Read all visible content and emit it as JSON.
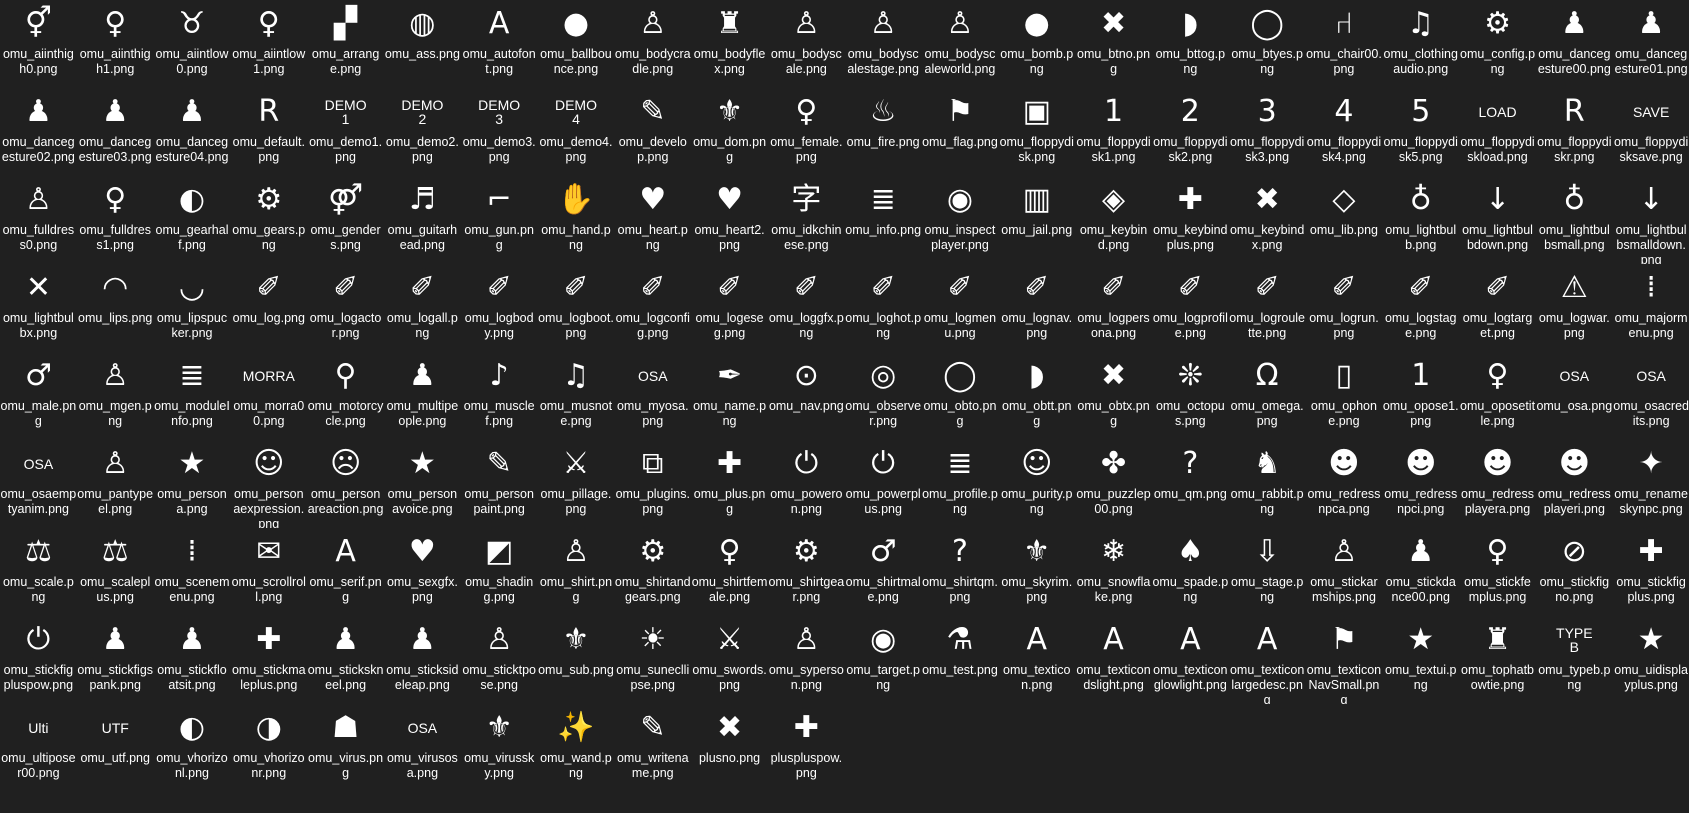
{
  "window": {
    "view": "icons"
  },
  "files": [
    {
      "name": "omu_aiinthigh0.png",
      "icon": "⚥",
      "icon_name": "female-auto-icon"
    },
    {
      "name": "omu_aiinthigh1.png",
      "icon": "♀",
      "icon_name": "female-auto-icon"
    },
    {
      "name": "omu_aiintlow0.png",
      "icon": "♉",
      "icon_name": "lingerie-auto-icon"
    },
    {
      "name": "omu_aiintlow1.png",
      "icon": "♀",
      "icon_name": "female-auto-icon"
    },
    {
      "name": "omu_arrange.png",
      "icon": "▞",
      "icon_name": "checker-icon"
    },
    {
      "name": "omu_ass.png",
      "icon": "◍",
      "icon_name": "ass-icon"
    },
    {
      "name": "omu_autofont.png",
      "icon": "A",
      "icon_name": "autofont-icon"
    },
    {
      "name": "omu_ballbounce.png",
      "icon": "●",
      "icon_name": "ball-bounce-icon"
    },
    {
      "name": "omu_bodycradle.png",
      "icon": "♙",
      "icon_name": "body-icon"
    },
    {
      "name": "omu_bodyflex.png",
      "icon": "♜",
      "icon_name": "flex-icon"
    },
    {
      "name": "omu_bodyscale.png",
      "icon": "♙",
      "icon_name": "body-scale-icon"
    },
    {
      "name": "omu_bodyscalestage.png",
      "icon": "♙",
      "icon_name": "body-stage-icon"
    },
    {
      "name": "omu_bodyscaleworld.png",
      "icon": "♙",
      "icon_name": "body-world-icon"
    },
    {
      "name": "omu_bomb.png",
      "icon": "●",
      "icon_name": "bomb-icon"
    },
    {
      "name": "omu_btno.png",
      "icon": "✖",
      "icon_name": "cross-icon"
    },
    {
      "name": "omu_bttog.png",
      "icon": "◗",
      "icon_name": "half-circle-icon"
    },
    {
      "name": "omu_btyes.png",
      "icon": "◯",
      "icon_name": "ring-icon"
    },
    {
      "name": "omu_chair00.png",
      "icon": "⑁",
      "icon_name": "chair-icon"
    },
    {
      "name": "omu_clothingaudio.png",
      "icon": "♫",
      "icon_name": "shirt-music-icon"
    },
    {
      "name": "omu_config.png",
      "icon": "⚙",
      "icon_name": "gear-icon"
    },
    {
      "name": "omu_dancegesture00.png",
      "icon": "♟",
      "icon_name": "dancer-icon"
    },
    {
      "name": "omu_dancegesture01.png",
      "icon": "♟",
      "icon_name": "dancer-icon"
    },
    {
      "name": "omu_dancegesture02.png",
      "icon": "♟",
      "icon_name": "dancer-icon"
    },
    {
      "name": "omu_dancegesture03.png",
      "icon": "♟",
      "icon_name": "dancer-icon"
    },
    {
      "name": "omu_dancegesture04.png",
      "icon": "♟",
      "icon_name": "dancer-icon"
    },
    {
      "name": "omu_default.png",
      "icon": "R",
      "icon_name": "default-icon"
    },
    {
      "name": "omu_demo1.png",
      "icon": "DEMO\n1",
      "icon_name": "demo1-icon",
      "text": true
    },
    {
      "name": "omu_demo2.png",
      "icon": "DEMO\n2",
      "icon_name": "demo2-icon",
      "text": true
    },
    {
      "name": "omu_demo3.png",
      "icon": "DEMO\n3",
      "icon_name": "demo3-icon",
      "text": true
    },
    {
      "name": "omu_demo4.png",
      "icon": "DEMO\n4",
      "icon_name": "demo4-icon",
      "text": true
    },
    {
      "name": "omu_develop.png",
      "icon": "✎",
      "icon_name": "pencil-icon"
    },
    {
      "name": "omu_dom.png",
      "icon": "⚜",
      "icon_name": "dom-icon"
    },
    {
      "name": "omu_female.png",
      "icon": "♀",
      "icon_name": "female-icon"
    },
    {
      "name": "omu_fire.png",
      "icon": "♨",
      "icon_name": "fire-icon"
    },
    {
      "name": "omu_flag.png",
      "icon": "⚑",
      "icon_name": "flag-icon"
    },
    {
      "name": "omu_floppydisk.png",
      "icon": "▣",
      "icon_name": "floppy-icon"
    },
    {
      "name": "omu_floppydisk1.png",
      "icon": "1",
      "icon_name": "floppy1-icon"
    },
    {
      "name": "omu_floppydisk2.png",
      "icon": "2",
      "icon_name": "floppy2-icon"
    },
    {
      "name": "omu_floppydisk3.png",
      "icon": "3",
      "icon_name": "floppy3-icon"
    },
    {
      "name": "omu_floppydisk4.png",
      "icon": "4",
      "icon_name": "floppy4-icon"
    },
    {
      "name": "omu_floppydisk5.png",
      "icon": "5",
      "icon_name": "floppy5-icon"
    },
    {
      "name": "omu_floppydiskload.png",
      "icon": "LOAD",
      "icon_name": "floppy-load-icon",
      "text": true
    },
    {
      "name": "omu_floppydiskr.png",
      "icon": "R",
      "icon_name": "floppy-r-icon"
    },
    {
      "name": "omu_floppydisksave.png",
      "icon": "SAVE",
      "icon_name": "floppy-save-icon",
      "text": true
    },
    {
      "name": "omu_fulldress0.png",
      "icon": "♙",
      "icon_name": "dress-icon"
    },
    {
      "name": "omu_fulldress1.png",
      "icon": "♀",
      "icon_name": "dress-female-icon"
    },
    {
      "name": "omu_gearhalf.png",
      "icon": "◐",
      "icon_name": "gear-half-icon"
    },
    {
      "name": "omu_gears.png",
      "icon": "⚙",
      "icon_name": "gears-icon"
    },
    {
      "name": "omu_genders.png",
      "icon": "⚤",
      "icon_name": "genders-icon"
    },
    {
      "name": "omu_guitarhead.png",
      "icon": "♬",
      "icon_name": "guitar-icon"
    },
    {
      "name": "omu_gun.png",
      "icon": "⌐",
      "icon_name": "gun-icon"
    },
    {
      "name": "omu_hand.png",
      "icon": "✋",
      "icon_name": "hand-icon"
    },
    {
      "name": "omu_heart.png",
      "icon": "♥",
      "icon_name": "heart-icon"
    },
    {
      "name": "omu_heart2.png",
      "icon": "♥",
      "icon_name": "heart2-icon"
    },
    {
      "name": "omu_idkchinese.png",
      "icon": "字",
      "icon_name": "chinese-icon"
    },
    {
      "name": "omu_info.png",
      "icon": "≣",
      "icon_name": "info-icon"
    },
    {
      "name": "omu_inspectplayer.png",
      "icon": "◉",
      "icon_name": "inspect-icon"
    },
    {
      "name": "omu_jail.png",
      "icon": "▥",
      "icon_name": "jail-icon"
    },
    {
      "name": "omu_keybind.png",
      "icon": "◈",
      "icon_name": "keybind-icon"
    },
    {
      "name": "omu_keybindplus.png",
      "icon": "✚",
      "icon_name": "keybind-plus-icon"
    },
    {
      "name": "omu_keybindx.png",
      "icon": "✖",
      "icon_name": "keybind-x-icon"
    },
    {
      "name": "omu_lib.png",
      "icon": "◇",
      "icon_name": "layers-icon"
    },
    {
      "name": "omu_lightbulb.png",
      "icon": "♁",
      "icon_name": "lightbulb-icon"
    },
    {
      "name": "omu_lightbulbdown.png",
      "icon": "↓",
      "icon_name": "lightbulb-down-icon"
    },
    {
      "name": "omu_lightbulbsmall.png",
      "icon": "♁",
      "icon_name": "lightbulb-small-icon"
    },
    {
      "name": "omu_lightbulbsmalldown.png",
      "icon": "↓",
      "icon_name": "lightbulb-small-down-icon"
    },
    {
      "name": "omu_lightbulbx.png",
      "icon": "✕",
      "icon_name": "lightbulb-x-icon"
    },
    {
      "name": "omu_lips.png",
      "icon": "◠",
      "icon_name": "lips-icon"
    },
    {
      "name": "omu_lipspucker.png",
      "icon": "◡",
      "icon_name": "lips-pucker-icon"
    },
    {
      "name": "omu_log.png",
      "icon": "✐",
      "icon_name": "log-icon"
    },
    {
      "name": "omu_logactor.png",
      "icon": "✐",
      "icon_name": "log-actor-icon"
    },
    {
      "name": "omu_logall.png",
      "icon": "✐",
      "icon_name": "log-all-icon"
    },
    {
      "name": "omu_logbody.png",
      "icon": "✐",
      "icon_name": "log-body-icon"
    },
    {
      "name": "omu_logboot.png",
      "icon": "✐",
      "icon_name": "log-boot-icon"
    },
    {
      "name": "omu_logconfig.png",
      "icon": "✐",
      "icon_name": "log-config-icon"
    },
    {
      "name": "omu_logeseg.png",
      "icon": "✐",
      "icon_name": "log-eseg-icon"
    },
    {
      "name": "omu_loggfx.png",
      "icon": "✐",
      "icon_name": "log-gfx-icon"
    },
    {
      "name": "omu_loghot.png",
      "icon": "✐",
      "icon_name": "log-hot-icon"
    },
    {
      "name": "omu_logmenu.png",
      "icon": "✐",
      "icon_name": "log-menu-icon"
    },
    {
      "name": "omu_lognav.png",
      "icon": "✐",
      "icon_name": "log-nav-icon"
    },
    {
      "name": "omu_logpersona.png",
      "icon": "✐",
      "icon_name": "log-persona-icon"
    },
    {
      "name": "omu_logprofile.png",
      "icon": "✐",
      "icon_name": "log-profile-icon"
    },
    {
      "name": "omu_logroulette.png",
      "icon": "✐",
      "icon_name": "log-roulette-icon"
    },
    {
      "name": "omu_logrun.png",
      "icon": "✐",
      "icon_name": "log-run-icon"
    },
    {
      "name": "omu_logstage.png",
      "icon": "✐",
      "icon_name": "log-stage-icon"
    },
    {
      "name": "omu_logtarget.png",
      "icon": "✐",
      "icon_name": "log-target-icon"
    },
    {
      "name": "omu_logwar.png",
      "icon": "⚠",
      "icon_name": "log-war-icon"
    },
    {
      "name": "omu_majormenu.png",
      "icon": "⁞",
      "icon_name": "major-menu-icon"
    },
    {
      "name": "omu_male.png",
      "icon": "♂",
      "icon_name": "male-icon"
    },
    {
      "name": "omu_mgen.png",
      "icon": "♙",
      "icon_name": "shirt-icon"
    },
    {
      "name": "omu_moduleInfo.png",
      "icon": "≣",
      "icon_name": "module-info-icon"
    },
    {
      "name": "omu_morra00.png",
      "icon": "MORRA",
      "icon_name": "morra-icon",
      "text": true
    },
    {
      "name": "omu_motorcycle.png",
      "icon": "⚲",
      "icon_name": "motorcycle-icon"
    },
    {
      "name": "omu_multipeople.png",
      "icon": "♟",
      "icon_name": "people-icon"
    },
    {
      "name": "omu_musclef.png",
      "icon": "♪",
      "icon_name": "music-icon"
    },
    {
      "name": "omu_musnote.png",
      "icon": "♫",
      "icon_name": "music-note-icon"
    },
    {
      "name": "omu_myosa.png",
      "icon": "OSA",
      "icon_name": "myosa-icon",
      "text": true
    },
    {
      "name": "omu_name.png",
      "icon": "✒",
      "icon_name": "quill-icon"
    },
    {
      "name": "omu_nav.png",
      "icon": "⊙",
      "icon_name": "nav-icon"
    },
    {
      "name": "omu_observer.png",
      "icon": "◎",
      "icon_name": "observer-icon"
    },
    {
      "name": "omu_obto.png",
      "icon": "◯",
      "icon_name": "ring-icon"
    },
    {
      "name": "omu_obtt.png",
      "icon": "◗",
      "icon_name": "half-circle-icon"
    },
    {
      "name": "omu_obtx.png",
      "icon": "✖",
      "icon_name": "cross-icon"
    },
    {
      "name": "omu_octopus.png",
      "icon": "❊",
      "icon_name": "octopus-icon"
    },
    {
      "name": "omu_omega.png",
      "icon": "Ω",
      "icon_name": "omega-icon"
    },
    {
      "name": "omu_ophone.png",
      "icon": "▯",
      "icon_name": "phone-icon"
    },
    {
      "name": "omu_opose1.png",
      "icon": "1",
      "icon_name": "pose1-icon"
    },
    {
      "name": "omu_oposetitle.png",
      "icon": "♀",
      "icon_name": "pose-title-icon"
    },
    {
      "name": "omu_osa.png",
      "icon": "OSA",
      "icon_name": "osa-icon",
      "text": true
    },
    {
      "name": "omu_osacredits.png",
      "icon": "OSA",
      "icon_name": "osa-credits-icon",
      "text": true
    },
    {
      "name": "omu_osaemptyanim.png",
      "icon": "OSA",
      "icon_name": "osa-empty-icon",
      "text": true
    },
    {
      "name": "omu_pantypeel.png",
      "icon": "♙",
      "icon_name": "panty-icon"
    },
    {
      "name": "omu_persona.png",
      "icon": "★",
      "icon_name": "persona-icon"
    },
    {
      "name": "omu_personaexpression.png",
      "icon": "☺",
      "icon_name": "masks-icon"
    },
    {
      "name": "omu_personareaction.png",
      "icon": "☹",
      "icon_name": "reaction-icon"
    },
    {
      "name": "omu_personavoice.png",
      "icon": "★",
      "icon_name": "voice-icon"
    },
    {
      "name": "omu_personpaint.png",
      "icon": "✎",
      "icon_name": "paint-icon"
    },
    {
      "name": "omu_pillage.png",
      "icon": "⚔",
      "icon_name": "viking-icon"
    },
    {
      "name": "omu_plugins.png",
      "icon": "⧉",
      "icon_name": "plugins-icon"
    },
    {
      "name": "omu_plus.png",
      "icon": "✚",
      "icon_name": "plus-icon"
    },
    {
      "name": "omu_poweron.png",
      "icon": "⏻",
      "icon_name": "power-icon"
    },
    {
      "name": "omu_powerplus.png",
      "icon": "⏻",
      "icon_name": "power-plus-icon"
    },
    {
      "name": "omu_profile.png",
      "icon": "≣",
      "icon_name": "profile-icon"
    },
    {
      "name": "omu_purity.png",
      "icon": "☺",
      "icon_name": "angel-icon"
    },
    {
      "name": "omu_puzzlep00.png",
      "icon": "✤",
      "icon_name": "puzzle-icon"
    },
    {
      "name": "omu_qm.png",
      "icon": "?",
      "icon_name": "question-icon"
    },
    {
      "name": "omu_rabbit.png",
      "icon": "♞",
      "icon_name": "rabbit-icon"
    },
    {
      "name": "omu_redressnpca.png",
      "icon": "☻",
      "icon_name": "redress-a-icon"
    },
    {
      "name": "omu_redressnpci.png",
      "icon": "☻",
      "icon_name": "redress-i-icon"
    },
    {
      "name": "omu_redressplayera.png",
      "icon": "☻",
      "icon_name": "redress-player-a-icon"
    },
    {
      "name": "omu_redressplayeri.png",
      "icon": "☻",
      "icon_name": "redress-player-i-icon"
    },
    {
      "name": "omu_renameskynpc.png",
      "icon": "✦",
      "icon_name": "rename-icon"
    },
    {
      "name": "omu_scale.png",
      "icon": "⚖",
      "icon_name": "scale-icon"
    },
    {
      "name": "omu_scaleplus.png",
      "icon": "⚖",
      "icon_name": "scale-plus-icon"
    },
    {
      "name": "omu_scenemenu.png",
      "icon": "⁞",
      "icon_name": "scene-menu-icon"
    },
    {
      "name": "omu_scrollroll.png",
      "icon": "✉",
      "icon_name": "scroll-icon"
    },
    {
      "name": "omu_serif.png",
      "icon": "A",
      "icon_name": "serif-icon"
    },
    {
      "name": "omu_sexgfx.png",
      "icon": "♥",
      "icon_name": "sexgfx-icon"
    },
    {
      "name": "omu_shading.png",
      "icon": "◩",
      "icon_name": "shading-icon"
    },
    {
      "name": "omu_shirt.png",
      "icon": "♙",
      "icon_name": "shirt-icon"
    },
    {
      "name": "omu_shirtandgears.png",
      "icon": "⚙",
      "icon_name": "shirt-gears-icon"
    },
    {
      "name": "omu_shirtfemale.png",
      "icon": "♀",
      "icon_name": "shirt-female-icon"
    },
    {
      "name": "omu_shirtgear.png",
      "icon": "⚙",
      "icon_name": "shirt-gear-icon"
    },
    {
      "name": "omu_shirtmale.png",
      "icon": "♂",
      "icon_name": "shirt-male-icon"
    },
    {
      "name": "omu_shirtqm.png",
      "icon": "?",
      "icon_name": "shirt-question-icon"
    },
    {
      "name": "omu_skyrim.png",
      "icon": "⚜",
      "icon_name": "skyrim-icon"
    },
    {
      "name": "omu_snowflake.png",
      "icon": "❄",
      "icon_name": "snowflake-icon"
    },
    {
      "name": "omu_spade.png",
      "icon": "♠",
      "icon_name": "spade-icon"
    },
    {
      "name": "omu_stage.png",
      "icon": "⇩",
      "icon_name": "stage-icon"
    },
    {
      "name": "omu_stickarmships.png",
      "icon": "♙",
      "icon_name": "stick-icon"
    },
    {
      "name": "omu_stickdance00.png",
      "icon": "♟",
      "icon_name": "stick-dance-icon"
    },
    {
      "name": "omu_stickfemplus.png",
      "icon": "♀",
      "icon_name": "stick-female-plus-icon"
    },
    {
      "name": "omu_stickfigno.png",
      "icon": "⊘",
      "icon_name": "stick-no-icon"
    },
    {
      "name": "omu_stickfigplus.png",
      "icon": "✚",
      "icon_name": "stick-plus-icon"
    },
    {
      "name": "omu_stickfigpluspow.png",
      "icon": "⏻",
      "icon_name": "stick-pow-icon"
    },
    {
      "name": "omu_stickfigspank.png",
      "icon": "♟",
      "icon_name": "stick-spank-icon"
    },
    {
      "name": "omu_stickfloatsit.png",
      "icon": "♟",
      "icon_name": "stick-float-icon"
    },
    {
      "name": "omu_stickmaleplus.png",
      "icon": "✚",
      "icon_name": "stick-male-plus-icon"
    },
    {
      "name": "omu_stickskneel.png",
      "icon": "♟",
      "icon_name": "stick-kneel-icon"
    },
    {
      "name": "omu_sticksideleap.png",
      "icon": "♟",
      "icon_name": "stick-leap-icon"
    },
    {
      "name": "omu_sticktpose.png",
      "icon": "♙",
      "icon_name": "stick-tpose-icon"
    },
    {
      "name": "omu_sub.png",
      "icon": "⚜",
      "icon_name": "sub-icon"
    },
    {
      "name": "omu_sunecllipse.png",
      "icon": "☀",
      "icon_name": "sun-icon"
    },
    {
      "name": "omu_swords.png",
      "icon": "⚔",
      "icon_name": "swords-icon"
    },
    {
      "name": "omu_syperson.png",
      "icon": "♙",
      "icon_name": "person-icon"
    },
    {
      "name": "omu_target.png",
      "icon": "◉",
      "icon_name": "target-icon"
    },
    {
      "name": "omu_test.png",
      "icon": "⚗",
      "icon_name": "flask-icon"
    },
    {
      "name": "omu_texticon.png",
      "icon": "A",
      "icon_name": "texticon-icon"
    },
    {
      "name": "omu_texticondslight.png",
      "icon": "A",
      "icon_name": "texticon-slight-icon"
    },
    {
      "name": "omu_texticonglowlight.png",
      "icon": "A",
      "icon_name": "texticon-glow-icon"
    },
    {
      "name": "omu_texticonlargedesc.png",
      "icon": "A",
      "icon_name": "texticon-large-icon"
    },
    {
      "name": "omu_texticonNavSmall.png",
      "icon": "⚑",
      "icon_name": "texticon-nav-icon"
    },
    {
      "name": "omu_textui.png",
      "icon": "★",
      "icon_name": "textui-icon"
    },
    {
      "name": "omu_tophatbowtie.png",
      "icon": "♜",
      "icon_name": "tophat-icon"
    },
    {
      "name": "omu_typeb.png",
      "icon": "TYPE\nB",
      "icon_name": "typeb-icon",
      "text": true
    },
    {
      "name": "omu_uidisplayplus.png",
      "icon": "★",
      "icon_name": "ui-display-plus-icon"
    },
    {
      "name": "omu_ultiposer00.png",
      "icon": "Ulti",
      "icon_name": "ultiposer-icon",
      "text": true
    },
    {
      "name": "omu_utf.png",
      "icon": "UTF",
      "icon_name": "utf-icon",
      "text": true
    },
    {
      "name": "omu_vhorizonl.png",
      "icon": "◐",
      "icon_name": "half-left-icon"
    },
    {
      "name": "omu_vhorizonr.png",
      "icon": "◑",
      "icon_name": "half-right-icon"
    },
    {
      "name": "omu_virus.png",
      "icon": "☗",
      "icon_name": "invader-icon"
    },
    {
      "name": "omu_virusosa.png",
      "icon": "OSA",
      "icon_name": "invader-osa-icon",
      "text": true
    },
    {
      "name": "omu_virussky.png",
      "icon": "⚜",
      "icon_name": "invader-sky-icon"
    },
    {
      "name": "omu_wand.png",
      "icon": "✨",
      "icon_name": "wand-icon"
    },
    {
      "name": "omu_writename.png",
      "icon": "✎",
      "icon_name": "write-name-icon"
    },
    {
      "name": "plusno.png",
      "icon": "✖",
      "icon_name": "plus-no-icon"
    },
    {
      "name": "pluspluspow.png",
      "icon": "✚",
      "icon_name": "plus-pow-icon"
    }
  ]
}
